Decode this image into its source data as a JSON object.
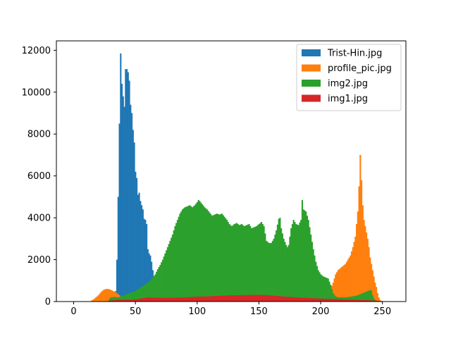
{
  "chart_data": {
    "type": "bar",
    "subtype": "overlapping-histogram",
    "title": "",
    "xlabel": "",
    "ylabel": "",
    "xlim": [
      -14,
      269
    ],
    "ylim": [
      0,
      12450
    ],
    "xticks": [
      0,
      50,
      100,
      150,
      200,
      250
    ],
    "yticks": [
      0,
      2000,
      4000,
      6000,
      8000,
      10000,
      12000
    ],
    "grid": false,
    "legend_position": "top-right",
    "draw_order": [
      "Trist-Hin.jpg",
      "profile_pic.jpg",
      "img2.jpg",
      "img1.jpg"
    ],
    "series": [
      {
        "name": "Trist-Hin.jpg",
        "color": "#1f77b4",
        "points": [
          [
            30,
            0
          ],
          [
            33,
            80
          ],
          [
            34,
            500
          ],
          [
            35,
            2000
          ],
          [
            36,
            5000
          ],
          [
            37,
            8500
          ],
          [
            38,
            11850
          ],
          [
            39,
            10400
          ],
          [
            40,
            9800
          ],
          [
            41,
            9300
          ],
          [
            42,
            11100
          ],
          [
            43,
            11100
          ],
          [
            44,
            10950
          ],
          [
            45,
            10550
          ],
          [
            46,
            9400
          ],
          [
            47,
            9000
          ],
          [
            48,
            8200
          ],
          [
            49,
            7600
          ],
          [
            50,
            6200
          ],
          [
            51,
            5900
          ],
          [
            52,
            5100
          ],
          [
            53,
            5200
          ],
          [
            54,
            4800
          ],
          [
            55,
            4600
          ],
          [
            56,
            4400
          ],
          [
            57,
            3950
          ],
          [
            58,
            3900
          ],
          [
            59,
            3700
          ],
          [
            60,
            2500
          ],
          [
            61,
            2300
          ],
          [
            62,
            2200
          ],
          [
            63,
            1900
          ],
          [
            64,
            1500
          ],
          [
            65,
            1200
          ],
          [
            66,
            1000
          ],
          [
            68,
            800
          ],
          [
            72,
            600
          ],
          [
            80,
            400
          ],
          [
            100,
            300
          ],
          [
            150,
            250
          ],
          [
            200,
            150
          ],
          [
            230,
            100
          ],
          [
            245,
            50
          ],
          [
            250,
            0
          ]
        ]
      },
      {
        "name": "profile_pic.jpg",
        "color": "#ff7f0e",
        "points": [
          [
            12,
            0
          ],
          [
            14,
            30
          ],
          [
            16,
            100
          ],
          [
            18,
            200
          ],
          [
            20,
            300
          ],
          [
            22,
            450
          ],
          [
            24,
            550
          ],
          [
            26,
            600
          ],
          [
            28,
            600
          ],
          [
            30,
            560
          ],
          [
            32,
            500
          ],
          [
            34,
            450
          ],
          [
            36,
            350
          ],
          [
            38,
            250
          ],
          [
            40,
            200
          ],
          [
            44,
            150
          ],
          [
            50,
            200
          ],
          [
            60,
            250
          ],
          [
            80,
            250
          ],
          [
            100,
            300
          ],
          [
            150,
            350
          ],
          [
            200,
            400
          ],
          [
            208,
            600
          ],
          [
            210,
            900
          ],
          [
            212,
            1300
          ],
          [
            214,
            1500
          ],
          [
            216,
            1600
          ],
          [
            218,
            1700
          ],
          [
            220,
            1800
          ],
          [
            222,
            2000
          ],
          [
            224,
            2200
          ],
          [
            226,
            2600
          ],
          [
            228,
            3100
          ],
          [
            229,
            3700
          ],
          [
            230,
            4300
          ],
          [
            231,
            5500
          ],
          [
            232,
            7000
          ],
          [
            233,
            5800
          ],
          [
            234,
            4600
          ],
          [
            235,
            3900
          ],
          [
            236,
            3600
          ],
          [
            237,
            3300
          ],
          [
            238,
            3000
          ],
          [
            239,
            2600
          ],
          [
            240,
            2100
          ],
          [
            241,
            1800
          ],
          [
            242,
            1500
          ],
          [
            243,
            1200
          ],
          [
            244,
            900
          ],
          [
            245,
            700
          ],
          [
            246,
            400
          ],
          [
            247,
            200
          ],
          [
            248,
            80
          ],
          [
            249,
            30
          ],
          [
            250,
            0
          ]
        ]
      },
      {
        "name": "img2.jpg",
        "color": "#2ca02c",
        "points": [
          [
            28,
            0
          ],
          [
            29,
            130
          ],
          [
            30,
            200
          ],
          [
            33,
            220
          ],
          [
            36,
            200
          ],
          [
            40,
            280
          ],
          [
            45,
            400
          ],
          [
            50,
            500
          ],
          [
            55,
            700
          ],
          [
            60,
            900
          ],
          [
            62,
            1000
          ],
          [
            64,
            1150
          ],
          [
            66,
            1300
          ],
          [
            68,
            1550
          ],
          [
            70,
            1750
          ],
          [
            72,
            2000
          ],
          [
            74,
            2300
          ],
          [
            76,
            2600
          ],
          [
            78,
            2900
          ],
          [
            80,
            3200
          ],
          [
            82,
            3600
          ],
          [
            84,
            3900
          ],
          [
            86,
            4200
          ],
          [
            88,
            4400
          ],
          [
            90,
            4500
          ],
          [
            92,
            4550
          ],
          [
            94,
            4600
          ],
          [
            96,
            4500
          ],
          [
            98,
            4600
          ],
          [
            100,
            4750
          ],
          [
            101,
            4850
          ],
          [
            102,
            4800
          ],
          [
            104,
            4650
          ],
          [
            106,
            4500
          ],
          [
            108,
            4400
          ],
          [
            110,
            4250
          ],
          [
            112,
            4100
          ],
          [
            114,
            4150
          ],
          [
            116,
            4200
          ],
          [
            118,
            4150
          ],
          [
            120,
            4200
          ],
          [
            122,
            4050
          ],
          [
            124,
            3900
          ],
          [
            126,
            3700
          ],
          [
            128,
            3600
          ],
          [
            130,
            3700
          ],
          [
            132,
            3750
          ],
          [
            134,
            3650
          ],
          [
            136,
            3700
          ],
          [
            138,
            3600
          ],
          [
            140,
            3650
          ],
          [
            142,
            3700
          ],
          [
            144,
            3500
          ],
          [
            146,
            3550
          ],
          [
            148,
            3600
          ],
          [
            150,
            3700
          ],
          [
            152,
            3800
          ],
          [
            154,
            3600
          ],
          [
            156,
            2900
          ],
          [
            158,
            2800
          ],
          [
            160,
            2800
          ],
          [
            162,
            3000
          ],
          [
            164,
            3400
          ],
          [
            166,
            3950
          ],
          [
            167,
            4000
          ],
          [
            168,
            3500
          ],
          [
            170,
            3000
          ],
          [
            172,
            2700
          ],
          [
            173,
            2600
          ],
          [
            174,
            2700
          ],
          [
            176,
            3500
          ],
          [
            178,
            3900
          ],
          [
            180,
            3700
          ],
          [
            182,
            3650
          ],
          [
            184,
            3900
          ],
          [
            185,
            4850
          ],
          [
            186,
            4400
          ],
          [
            188,
            4300
          ],
          [
            190,
            3900
          ],
          [
            192,
            3200
          ],
          [
            194,
            2500
          ],
          [
            196,
            1900
          ],
          [
            198,
            1500
          ],
          [
            200,
            1300
          ],
          [
            202,
            1200
          ],
          [
            204,
            1150
          ],
          [
            206,
            1100
          ],
          [
            208,
            800
          ],
          [
            210,
            400
          ],
          [
            212,
            250
          ],
          [
            214,
            200
          ],
          [
            220,
            200
          ],
          [
            226,
            250
          ],
          [
            230,
            300
          ],
          [
            234,
            400
          ],
          [
            236,
            450
          ],
          [
            238,
            500
          ],
          [
            240,
            550
          ],
          [
            241,
            520
          ],
          [
            242,
            300
          ],
          [
            243,
            150
          ],
          [
            244,
            80
          ],
          [
            246,
            0
          ]
        ]
      },
      {
        "name": "img1.jpg",
        "color": "#d62728",
        "points": [
          [
            25,
            0
          ],
          [
            27,
            20
          ],
          [
            30,
            50
          ],
          [
            35,
            80
          ],
          [
            40,
            90
          ],
          [
            50,
            100
          ],
          [
            55,
            150
          ],
          [
            60,
            200
          ],
          [
            70,
            180
          ],
          [
            80,
            180
          ],
          [
            90,
            200
          ],
          [
            100,
            230
          ],
          [
            110,
            250
          ],
          [
            120,
            280
          ],
          [
            130,
            300
          ],
          [
            140,
            310
          ],
          [
            150,
            320
          ],
          [
            155,
            310
          ],
          [
            160,
            290
          ],
          [
            170,
            240
          ],
          [
            180,
            200
          ],
          [
            190,
            170
          ],
          [
            200,
            140
          ],
          [
            210,
            120
          ],
          [
            220,
            100
          ],
          [
            230,
            80
          ],
          [
            240,
            60
          ],
          [
            245,
            40
          ],
          [
            250,
            20
          ],
          [
            252,
            0
          ]
        ]
      }
    ]
  }
}
